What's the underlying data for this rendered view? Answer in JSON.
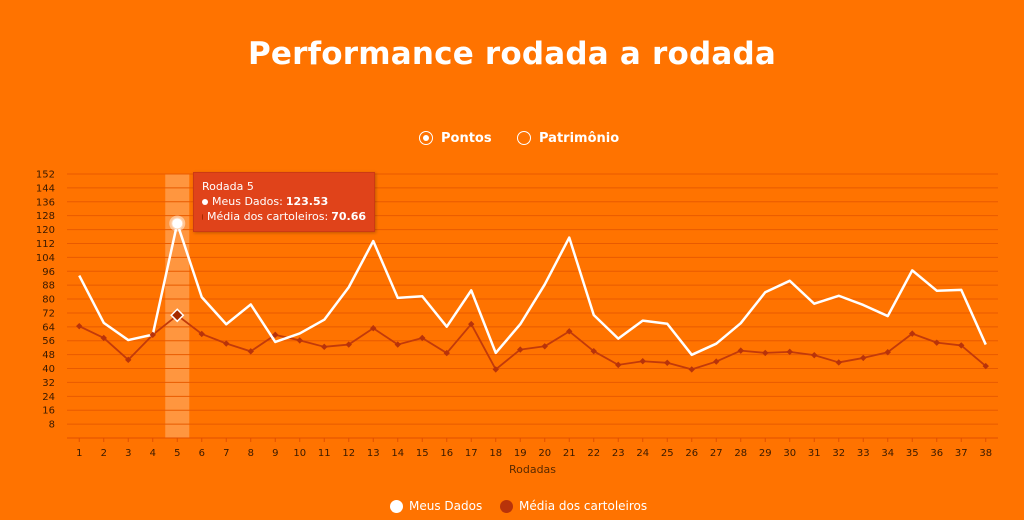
{
  "title": "Performance rodada a rodada",
  "toggles": {
    "pontos_label": "Pontos",
    "patrimonio_label": "Patrimônio",
    "selected": "Pontos"
  },
  "colors": {
    "background": "#ff7300",
    "series_meus": "#ffffff",
    "series_media": "#c73c0b",
    "gridline": "#e85a00",
    "tooltip_bg": "#e0431a",
    "highlight_band": "#ffb273"
  },
  "tooltip": {
    "header": "Rodada 5",
    "meus_label": "Meus Dados:",
    "meus_value": "123.53",
    "media_label": "Média dos cartoleiros:",
    "media_value": "70.66"
  },
  "legend": {
    "meus_label": "Meus Dados",
    "media_label": "Média dos cartoleiros"
  },
  "chart_data": {
    "type": "line",
    "title": "Performance rodada a rodada",
    "xlabel": "Rodadas",
    "ylabel": "",
    "x": [
      1,
      2,
      3,
      4,
      5,
      6,
      7,
      8,
      9,
      10,
      11,
      12,
      13,
      14,
      15,
      16,
      17,
      18,
      19,
      20,
      21,
      22,
      23,
      24,
      25,
      26,
      27,
      28,
      29,
      30,
      31,
      32,
      33,
      34,
      35,
      36,
      37,
      38
    ],
    "ylim": [
      0,
      152
    ],
    "yticks": [
      8,
      16,
      24,
      32,
      40,
      48,
      56,
      64,
      72,
      80,
      88,
      96,
      104,
      112,
      120,
      128,
      136,
      144,
      152
    ],
    "grid": true,
    "legend_position": "bottom",
    "highlight_x": 5,
    "series": [
      {
        "name": "Meus Dados",
        "values": [
          93.5,
          66.3,
          56.4,
          59.5,
          123.53,
          81.1,
          65.5,
          76.9,
          55.3,
          60.2,
          68.1,
          86.8,
          113.4,
          80.7,
          81.6,
          64.1,
          85.0,
          49.0,
          65.5,
          88.4,
          115.4,
          70.8,
          57.2,
          67.6,
          65.8,
          47.9,
          54.3,
          66.1,
          83.9,
          90.5,
          77.3,
          81.9,
          76.6,
          70.2,
          96.5,
          84.8,
          85.3,
          53.8
        ]
      },
      {
        "name": "Média dos cartoleiros",
        "values": [
          64.4,
          57.6,
          45.0,
          59.4,
          70.66,
          59.9,
          54.4,
          49.9,
          59.4,
          56.2,
          52.5,
          53.8,
          63.2,
          53.8,
          57.6,
          48.9,
          65.6,
          39.5,
          50.9,
          52.8,
          61.4,
          50.0,
          42.1,
          44.2,
          43.3,
          39.5,
          44.0,
          50.3,
          49.0,
          49.6,
          47.7,
          43.5,
          46.1,
          49.4,
          60.1,
          54.9,
          53.3,
          41.4
        ]
      }
    ]
  }
}
